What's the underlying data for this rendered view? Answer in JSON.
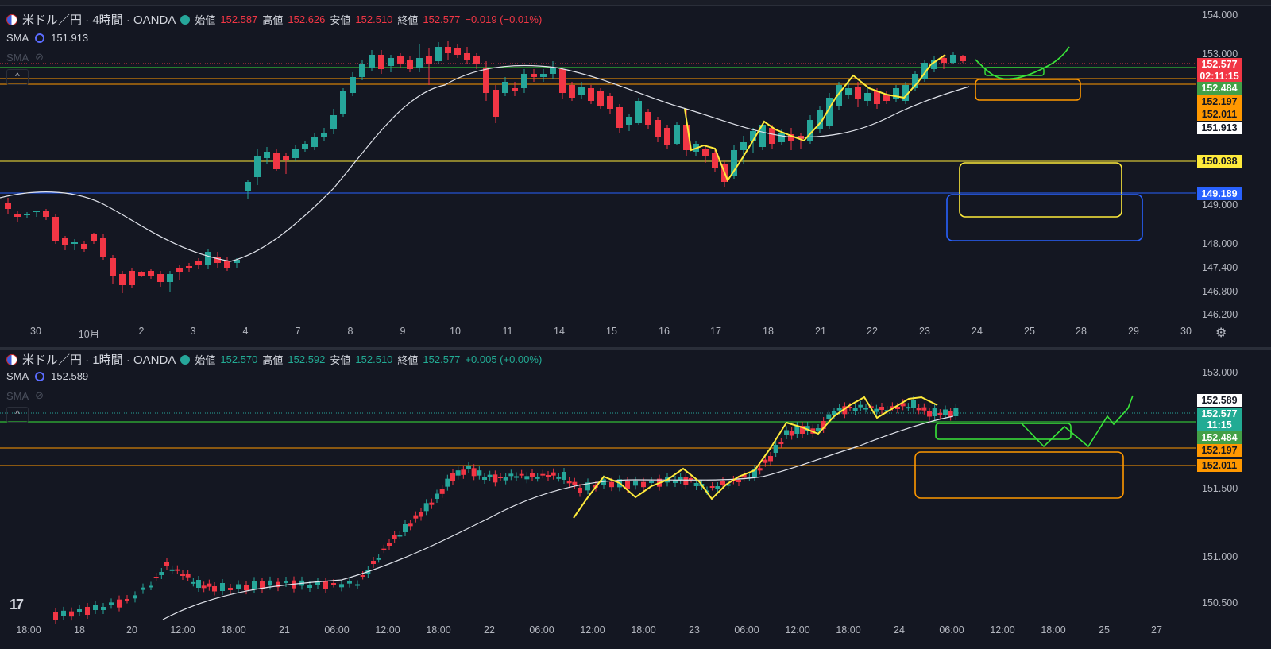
{
  "top_chart": {
    "symbol_title": "米ドル／円 · 4時間 · OANDA",
    "ohlc": {
      "open_label": "始値",
      "open": "152.587",
      "high_label": "高値",
      "high": "152.626",
      "low_label": "安値",
      "low": "152.510",
      "close_label": "終値",
      "close": "152.577",
      "change": "−0.019 (−0.01%)"
    },
    "sma": {
      "label": "SMA",
      "value": "151.913"
    },
    "sma_hidden": {
      "label": "SMA"
    },
    "price_axis": [
      "154.000",
      "153.000",
      "149.000",
      "148.000",
      "147.400",
      "146.800",
      "146.200"
    ],
    "price_tags": [
      {
        "text": "152.577",
        "bg": "#f23645",
        "fg": "#ffffff"
      },
      {
        "text": "02:11:15",
        "bg": "#f23645",
        "fg": "#ffffff"
      },
      {
        "text": "152.484",
        "bg": "#43a047",
        "fg": "#ffffff"
      },
      {
        "text": "152.197",
        "bg": "#ff9800",
        "fg": "#141722"
      },
      {
        "text": "152.011",
        "bg": "#ff9800",
        "fg": "#141722"
      },
      {
        "text": "151.913",
        "bg": "#ffffff",
        "fg": "#141722"
      },
      {
        "text": "150.038",
        "bg": "#ffeb3b",
        "fg": "#141722"
      },
      {
        "text": "149.189",
        "bg": "#2962ff",
        "fg": "#ffffff"
      }
    ],
    "time_axis": [
      "30",
      "10月",
      "2",
      "3",
      "4",
      "7",
      "8",
      "9",
      "10",
      "11",
      "14",
      "15",
      "16",
      "17",
      "18",
      "21",
      "22",
      "23",
      "24",
      "25",
      "28",
      "29",
      "30"
    ]
  },
  "bottom_chart": {
    "symbol_title": "米ドル／円 · 1時間 · OANDA",
    "ohlc": {
      "open_label": "始値",
      "open": "152.570",
      "high_label": "高値",
      "high": "152.592",
      "low_label": "安値",
      "low": "152.510",
      "close_label": "終値",
      "close": "152.577",
      "change": "+0.005 (+0.00%)"
    },
    "sma": {
      "label": "SMA",
      "value": "152.589"
    },
    "sma_hidden": {
      "label": "SMA"
    },
    "price_axis": [
      "153.000",
      "151.500",
      "151.000",
      "150.500"
    ],
    "price_tags": [
      {
        "text": "152.589",
        "bg": "#ffffff",
        "fg": "#141722"
      },
      {
        "text": "152.577",
        "bg": "#22ab94",
        "fg": "#ffffff"
      },
      {
        "text": "11:15",
        "bg": "#22ab94",
        "fg": "#ffffff"
      },
      {
        "text": "152.484",
        "bg": "#43a047",
        "fg": "#ffffff"
      },
      {
        "text": "152.197",
        "bg": "#ff9800",
        "fg": "#141722"
      },
      {
        "text": "152.011",
        "bg": "#ff9800",
        "fg": "#141722"
      }
    ],
    "time_axis": [
      "18:00",
      "18",
      "20",
      "12:00",
      "18:00",
      "21",
      "06:00",
      "12:00",
      "18:00",
      "22",
      "06:00",
      "12:00",
      "18:00",
      "23",
      "06:00",
      "12:00",
      "18:00",
      "24",
      "06:00",
      "12:00",
      "18:00",
      "25",
      "27"
    ]
  },
  "colors": {
    "up": "#26a69a",
    "down": "#f23645",
    "background": "#141722",
    "sma_line": "#e0e3eb",
    "yellow": "#ffeb3b",
    "orange": "#ff9800",
    "blue": "#2962ff",
    "green_drawing": "#39e639"
  },
  "icons": {
    "settings": "gear-icon",
    "collapse": "chevron-up-icon",
    "visibility": "eye-off-icon",
    "logo": "tradingview-logo"
  }
}
